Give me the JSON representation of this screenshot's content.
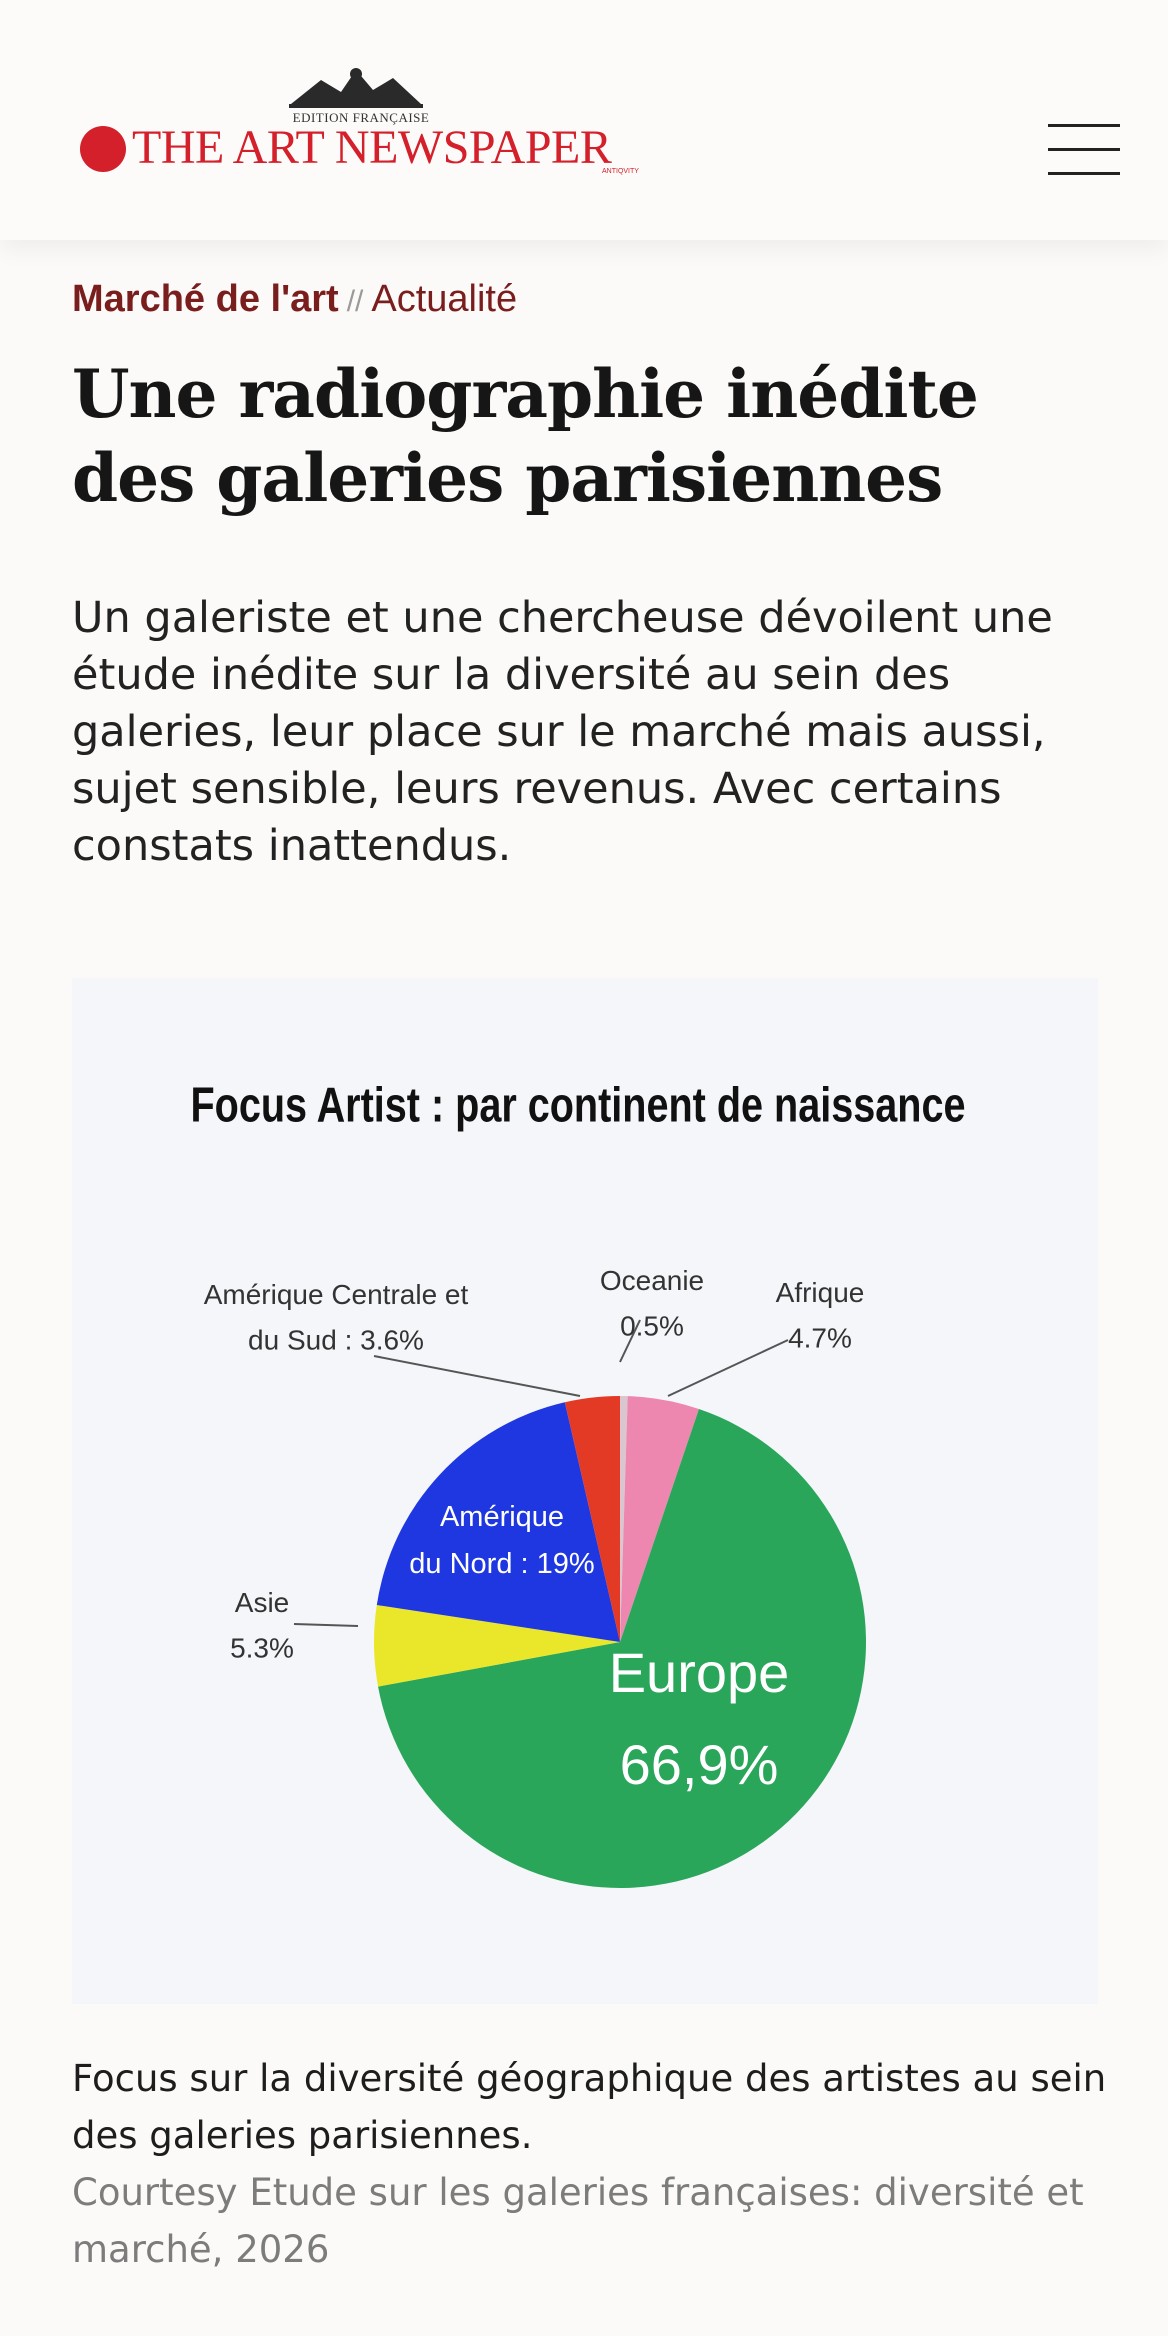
{
  "header": {
    "edition": "EDITION FRANÇAISE",
    "logo_text": "THE ART NEWSPAPER",
    "logo_tiny": "ANTIQVITY"
  },
  "breadcrumb": {
    "section": "Marché de l'art",
    "separator": "//",
    "subsection": "Actualité"
  },
  "article": {
    "title": "Une radiographie inédite des galeries parisiennes",
    "lead": "Un galeriste et une chercheuse dévoilent une étude inédite sur la diversité au sein des galeries, leur place sur le marché mais aussi, sujet sensible, leurs revenus. Avec certains constats inattendus."
  },
  "chart_data": {
    "type": "pie",
    "title": "Focus Artist : par continent de naissance",
    "slices": [
      {
        "label_lines": [
          "Oceanie",
          "0.5%"
        ],
        "value": 0.5,
        "color": "#d9c6cf"
      },
      {
        "label_lines": [
          "Afrique",
          "4.7%"
        ],
        "value": 4.7,
        "color": "#ee87b0"
      },
      {
        "label_lines": [
          "Europe",
          "66,9%"
        ],
        "value": 66.9,
        "color": "#2aa65a"
      },
      {
        "label_lines": [
          "Asie",
          "5.3%"
        ],
        "value": 5.3,
        "color": "#eae72a"
      },
      {
        "label_lines": [
          "Amérique",
          "du Nord : 19%"
        ],
        "value": 19,
        "color": "#1e37e0"
      },
      {
        "label_lines": [
          "Amérique Centrale et",
          "du Sud : 3.6%"
        ],
        "value": 3.6,
        "color": "#e23a24"
      }
    ]
  },
  "figure": {
    "caption": "Focus sur la diversité géographique des artistes au sein des galeries parisiennes.",
    "credit": "Courtesy Etude sur les galeries françaises: diversité et marché, 2026"
  }
}
